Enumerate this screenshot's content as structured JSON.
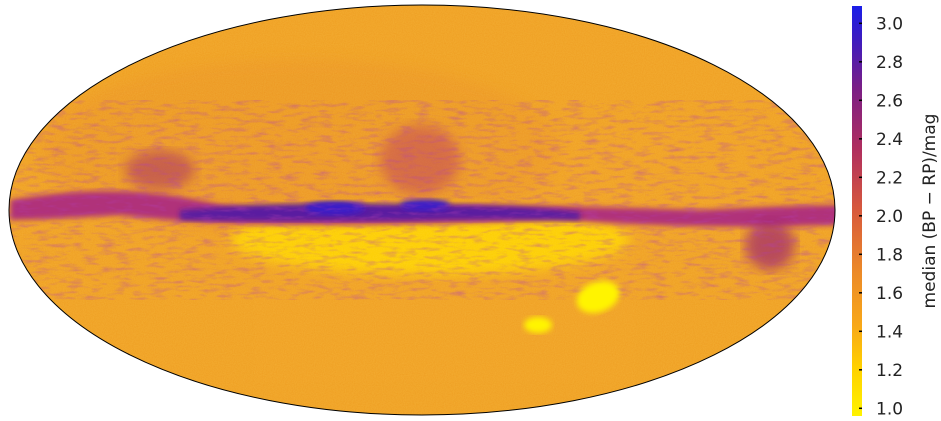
{
  "colorbar": {
    "label": "median (BP − RP)/mag",
    "lim": [
      0.96,
      3.09
    ],
    "ticks": [
      {
        "value": 1.0,
        "label": "1.0"
      },
      1.2,
      1.4,
      1.6,
      1.8,
      {
        "value": 2.0,
        "label": "2.0"
      },
      2.2,
      2.4,
      2.6,
      2.8,
      {
        "value": 3.0,
        "label": "3.0"
      }
    ]
  }
}
